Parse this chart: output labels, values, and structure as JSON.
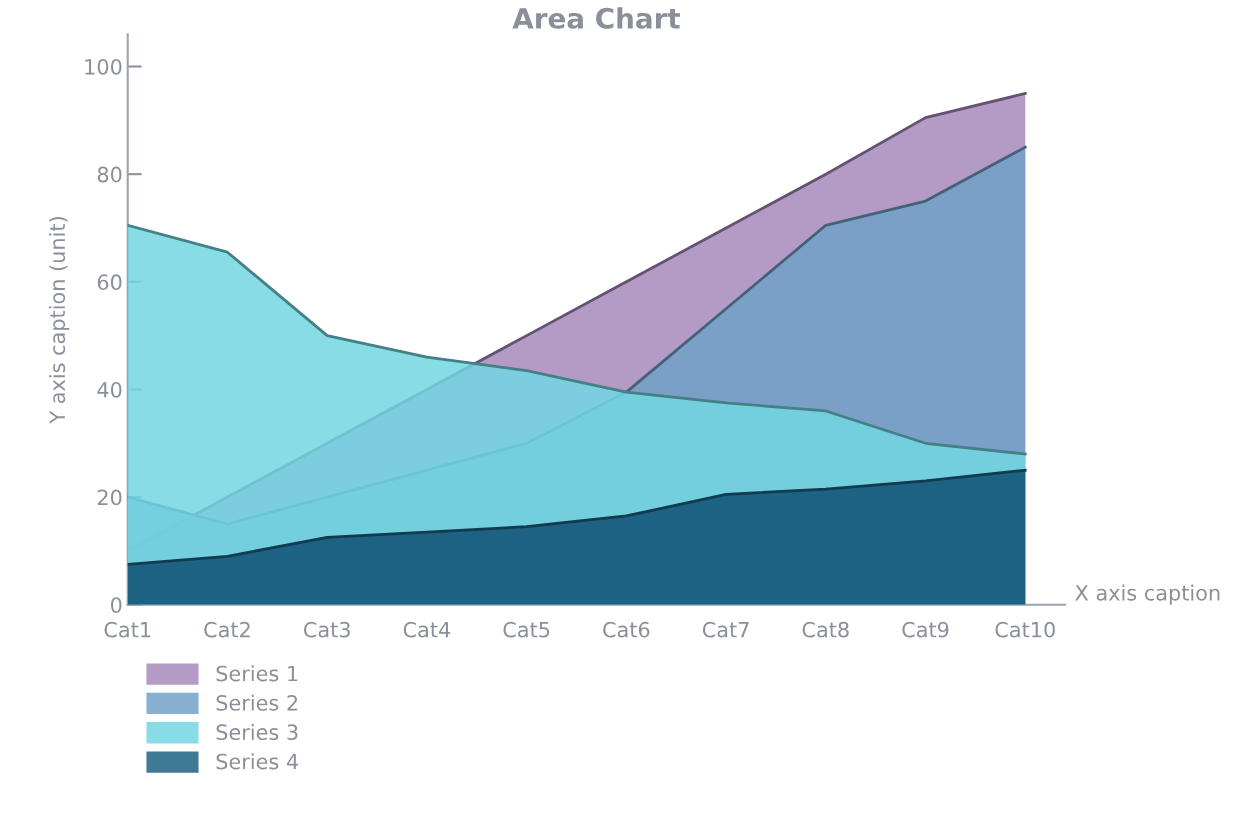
{
  "chart_data": {
    "type": "area",
    "title": "Area Chart",
    "xlabel": "X axis caption",
    "ylabel": "Y axis caption (unit)",
    "categories": [
      "Cat1",
      "Cat2",
      "Cat3",
      "Cat4",
      "Cat5",
      "Cat6",
      "Cat7",
      "Cat8",
      "Cat9",
      "Cat10"
    ],
    "series": [
      {
        "name": "Series 1",
        "color": "#a689bc",
        "values": [
          10,
          20,
          30,
          40,
          50,
          60,
          70,
          80,
          90.5,
          95
        ]
      },
      {
        "name": "Series 2",
        "color": "#71a1c8",
        "values": [
          20,
          15,
          20,
          25,
          30,
          39.5,
          55,
          70.5,
          75,
          85
        ]
      },
      {
        "name": "Series 3",
        "color": "#72d6e0",
        "values": [
          70.5,
          65.5,
          50,
          46,
          43.5,
          39.5,
          37.5,
          36,
          30,
          28
        ]
      },
      {
        "name": "Series 4",
        "color": "#1d6282",
        "values": [
          7.5,
          9,
          12.5,
          13.5,
          14.5,
          16.5,
          20.5,
          21.5,
          23,
          25
        ]
      }
    ],
    "ylim": [
      0,
      106
    ],
    "yticks": [
      0,
      20,
      40,
      60,
      80,
      100
    ],
    "grid": false,
    "legend": "bottom left"
  }
}
